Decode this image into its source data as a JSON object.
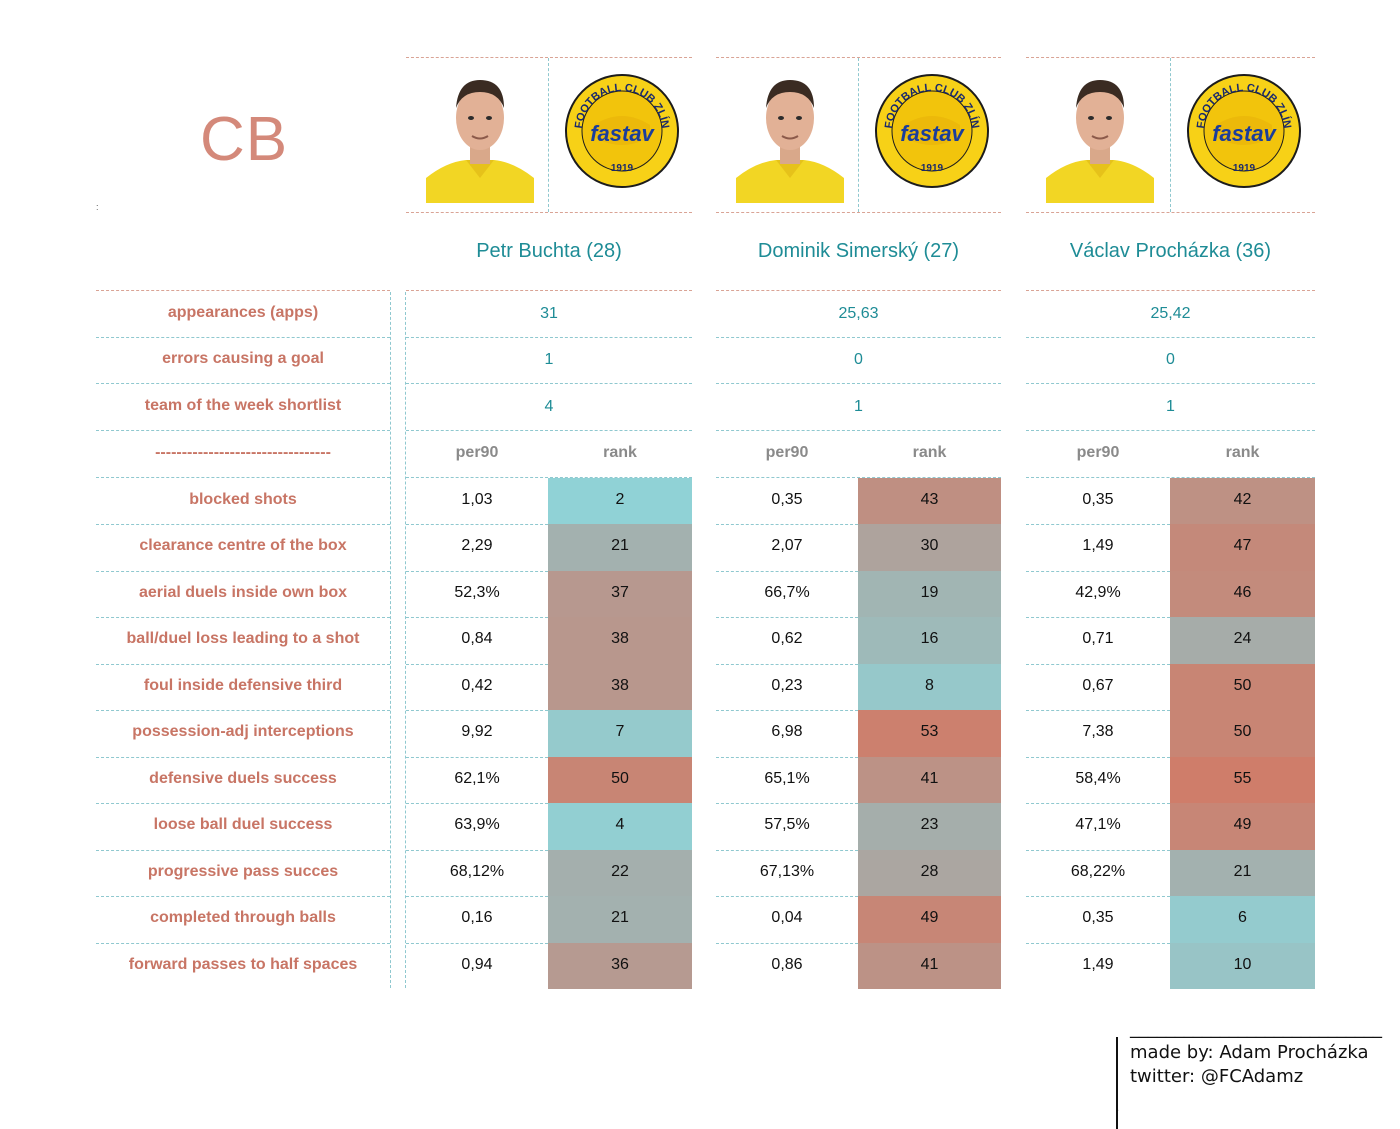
{
  "position_label": "CB",
  "tiny_mark": ":",
  "players": [
    {
      "name": "Petr Buchta (28)",
      "club_logo": {
        "ring_text": "FOOTBALL CLUB ZLÍN",
        "wordmark": "fastav",
        "year": "1919"
      }
    },
    {
      "name": "Dominik Simerský (27)",
      "club_logo": {
        "ring_text": "FOOTBALL CLUB ZLÍN",
        "wordmark": "fastav",
        "year": "1919"
      }
    },
    {
      "name": "Václav Procházka (36)",
      "club_logo": {
        "ring_text": "FOOTBALL CLUB ZLÍN",
        "wordmark": "fastav",
        "year": "1919"
      }
    }
  ],
  "header": {
    "separator": "---------------------------------",
    "per90": "per90",
    "rank": "rank"
  },
  "colors": {
    "accent_label": "#c87565",
    "player_name": "#1e8c96",
    "rank_low": "#8fd4d8",
    "rank_mid": "#a7aaa7",
    "rank_high": "#cf7d6a"
  },
  "chart_data": {
    "type": "table",
    "summary_rows": [
      {
        "label": "appearances (apps)",
        "values": [
          "31",
          "25,63",
          "25,42"
        ]
      },
      {
        "label": "errors causing a goal",
        "values": [
          "1",
          "0",
          "0"
        ]
      },
      {
        "label": "team of the week shortlist",
        "values": [
          "4",
          "1",
          "1"
        ]
      }
    ],
    "metric_rows": [
      {
        "label": "blocked shots",
        "per90": [
          "1,03",
          "0,35",
          "0,35"
        ],
        "rank": [
          "2",
          "43",
          "42"
        ]
      },
      {
        "label": "clearance centre of the box",
        "per90": [
          "2,29",
          "2,07",
          "1,49"
        ],
        "rank": [
          "21",
          "30",
          "47"
        ]
      },
      {
        "label": "aerial duels inside own box",
        "per90": [
          "52,3%",
          "66,7%",
          "42,9%"
        ],
        "rank": [
          "37",
          "19",
          "46"
        ]
      },
      {
        "label": "ball/duel loss leading to a shot",
        "per90": [
          "0,84",
          "0,62",
          "0,71"
        ],
        "rank": [
          "38",
          "16",
          "24"
        ]
      },
      {
        "label": "foul inside defensive third",
        "per90": [
          "0,42",
          "0,23",
          "0,67"
        ],
        "rank": [
          "38",
          "8",
          "50"
        ]
      },
      {
        "label": "possession-adj interceptions",
        "per90": [
          "9,92",
          "6,98",
          "7,38"
        ],
        "rank": [
          "7",
          "53",
          "50"
        ]
      },
      {
        "label": "defensive duels success",
        "per90": [
          "62,1%",
          "65,1%",
          "58,4%"
        ],
        "rank": [
          "50",
          "41",
          "55"
        ]
      },
      {
        "label": "loose ball duel success",
        "per90": [
          "63,9%",
          "57,5%",
          "47,1%"
        ],
        "rank": [
          "4",
          "23",
          "49"
        ]
      },
      {
        "label": "progressive pass succes",
        "per90": [
          "68,12%",
          "67,13%",
          "68,22%"
        ],
        "rank": [
          "22",
          "28",
          "21"
        ]
      },
      {
        "label": "completed through balls",
        "per90": [
          "0,16",
          "0,04",
          "0,35"
        ],
        "rank": [
          "21",
          "49",
          "6"
        ]
      },
      {
        "label": "forward passes to half spaces",
        "per90": [
          "0,94",
          "0,86",
          "1,49"
        ],
        "rank": [
          "36",
          "41",
          "10"
        ]
      }
    ]
  },
  "credit": {
    "rule": "____________________________",
    "made_by": "made by: Adam Procházka",
    "twitter": "twitter: @FCAdamz",
    "dot": "."
  }
}
